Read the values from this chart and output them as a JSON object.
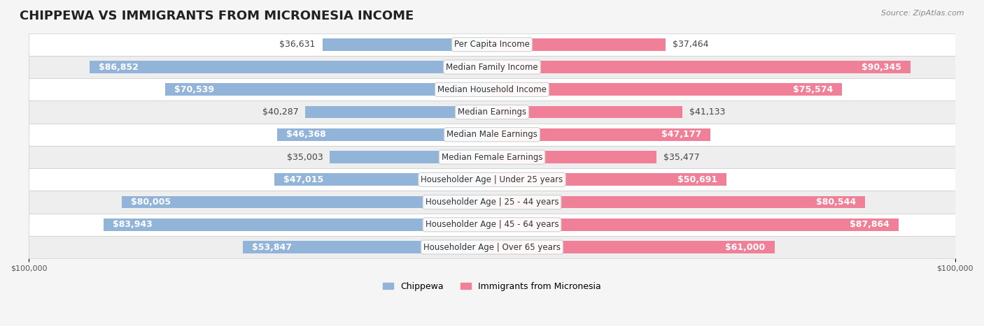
{
  "title": "CHIPPEWA VS IMMIGRANTS FROM MICRONESIA INCOME",
  "source": "Source: ZipAtlas.com",
  "categories": [
    "Per Capita Income",
    "Median Family Income",
    "Median Household Income",
    "Median Earnings",
    "Median Male Earnings",
    "Median Female Earnings",
    "Householder Age | Under 25 years",
    "Householder Age | 25 - 44 years",
    "Householder Age | 45 - 64 years",
    "Householder Age | Over 65 years"
  ],
  "chippewa": [
    36631,
    86852,
    70539,
    40287,
    46368,
    35003,
    47015,
    80005,
    83943,
    53847
  ],
  "micronesia": [
    37464,
    90345,
    75574,
    41133,
    47177,
    35477,
    50691,
    80544,
    87864,
    61000
  ],
  "chippewa_labels": [
    "$36,631",
    "$86,852",
    "$70,539",
    "$40,287",
    "$46,368",
    "$35,003",
    "$47,015",
    "$80,005",
    "$83,943",
    "$53,847"
  ],
  "micronesia_labels": [
    "$37,464",
    "$90,345",
    "$75,574",
    "$41,133",
    "$47,177",
    "$35,477",
    "$50,691",
    "$80,544",
    "$87,864",
    "$61,000"
  ],
  "max_val": 100000,
  "color_chippewa": "#92b4d8",
  "color_micronesia": "#f08098",
  "color_chippewa_dark": "#6a9ec8",
  "color_micronesia_dark": "#e86080",
  "bg_color": "#f5f5f5",
  "row_bg_light": "#ffffff",
  "row_bg_dark": "#eeeeee",
  "bar_height": 0.55,
  "label_fontsize": 9,
  "title_fontsize": 13,
  "category_fontsize": 8.5,
  "legend_fontsize": 9,
  "axis_label_fontsize": 8
}
